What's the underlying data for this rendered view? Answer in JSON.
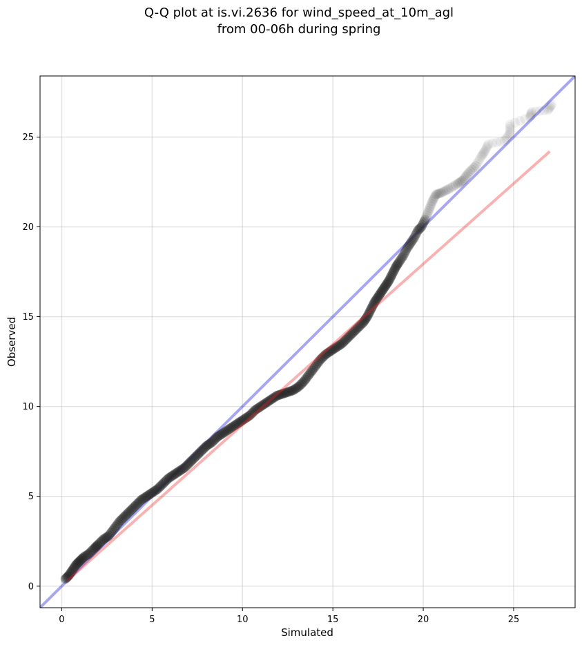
{
  "chart_data": {
    "type": "scatter",
    "title_line1": "Q-Q plot at is.vi.2636 for wind_speed_at_10m_agl",
    "title_line2": "from 00-06h during spring",
    "xlabel": "Simulated",
    "ylabel": "Observed",
    "xlim": [
      -1.2,
      28.4
    ],
    "ylim": [
      -1.2,
      28.4
    ],
    "xticks": [
      0,
      5,
      10,
      15,
      20,
      25
    ],
    "yticks": [
      0,
      5,
      10,
      15,
      20,
      25
    ],
    "grid": true,
    "reference_line": {
      "color": "#0000dd",
      "from": [
        -1.2,
        -1.2
      ],
      "to": [
        28.4,
        28.4
      ]
    },
    "fit_line": {
      "color": "#ee2222",
      "from": [
        0.3,
        0.3
      ],
      "to": [
        27.0,
        24.2
      ]
    },
    "marker_color": "#222222",
    "points": [
      [
        0.2,
        0.4
      ],
      [
        0.4,
        0.6
      ],
      [
        0.6,
        0.9
      ],
      [
        0.8,
        1.2
      ],
      [
        1.0,
        1.4
      ],
      [
        1.2,
        1.6
      ],
      [
        1.5,
        1.8
      ],
      [
        1.8,
        2.1
      ],
      [
        2.0,
        2.3
      ],
      [
        2.3,
        2.6
      ],
      [
        2.6,
        2.8
      ],
      [
        2.9,
        3.2
      ],
      [
        3.2,
        3.6
      ],
      [
        3.5,
        3.9
      ],
      [
        3.8,
        4.2
      ],
      [
        4.1,
        4.5
      ],
      [
        4.4,
        4.8
      ],
      [
        4.7,
        5.0
      ],
      [
        5.0,
        5.2
      ],
      [
        5.3,
        5.4
      ],
      [
        5.6,
        5.7
      ],
      [
        5.9,
        6.0
      ],
      [
        6.2,
        6.2
      ],
      [
        6.5,
        6.4
      ],
      [
        6.8,
        6.6
      ],
      [
        7.1,
        6.9
      ],
      [
        7.4,
        7.2
      ],
      [
        7.7,
        7.5
      ],
      [
        8.0,
        7.8
      ],
      [
        8.3,
        8.0
      ],
      [
        8.6,
        8.3
      ],
      [
        8.9,
        8.5
      ],
      [
        9.2,
        8.7
      ],
      [
        9.5,
        8.9
      ],
      [
        9.8,
        9.1
      ],
      [
        10.1,
        9.3
      ],
      [
        10.4,
        9.5
      ],
      [
        10.7,
        9.8
      ],
      [
        11.0,
        10.0
      ],
      [
        11.3,
        10.2
      ],
      [
        11.6,
        10.4
      ],
      [
        11.9,
        10.6
      ],
      [
        12.2,
        10.7
      ],
      [
        12.5,
        10.8
      ],
      [
        12.8,
        10.9
      ],
      [
        13.1,
        11.1
      ],
      [
        13.4,
        11.4
      ],
      [
        13.7,
        11.8
      ],
      [
        14.0,
        12.2
      ],
      [
        14.3,
        12.6
      ],
      [
        14.6,
        12.9
      ],
      [
        14.9,
        13.1
      ],
      [
        15.2,
        13.3
      ],
      [
        15.5,
        13.5
      ],
      [
        15.8,
        13.8
      ],
      [
        16.1,
        14.1
      ],
      [
        16.4,
        14.4
      ],
      [
        16.7,
        14.7
      ],
      [
        16.9,
        15.0
      ],
      [
        17.1,
        15.4
      ],
      [
        17.3,
        15.8
      ],
      [
        17.5,
        16.1
      ],
      [
        17.7,
        16.4
      ],
      [
        17.9,
        16.7
      ],
      [
        18.1,
        17.0
      ],
      [
        18.3,
        17.4
      ],
      [
        18.5,
        17.8
      ],
      [
        18.7,
        18.1
      ],
      [
        18.9,
        18.4
      ],
      [
        19.1,
        18.8
      ],
      [
        19.3,
        19.1
      ],
      [
        19.5,
        19.4
      ],
      [
        19.7,
        19.8
      ],
      [
        19.9,
        20.0
      ],
      [
        20.1,
        20.4
      ],
      [
        20.3,
        20.9
      ],
      [
        20.5,
        21.4
      ],
      [
        20.7,
        21.8
      ],
      [
        21.0,
        21.9
      ],
      [
        21.4,
        22.1
      ],
      [
        21.9,
        22.4
      ],
      [
        22.2,
        22.6
      ],
      [
        22.5,
        23.0
      ],
      [
        22.9,
        23.4
      ],
      [
        23.2,
        23.9
      ],
      [
        23.4,
        24.2
      ],
      [
        23.6,
        24.6
      ],
      [
        24.5,
        24.8
      ],
      [
        24.8,
        25.2
      ],
      [
        24.8,
        25.7
      ],
      [
        25.9,
        26.1
      ],
      [
        26.0,
        26.4
      ],
      [
        26.9,
        26.5
      ],
      [
        27.1,
        26.8
      ]
    ]
  }
}
